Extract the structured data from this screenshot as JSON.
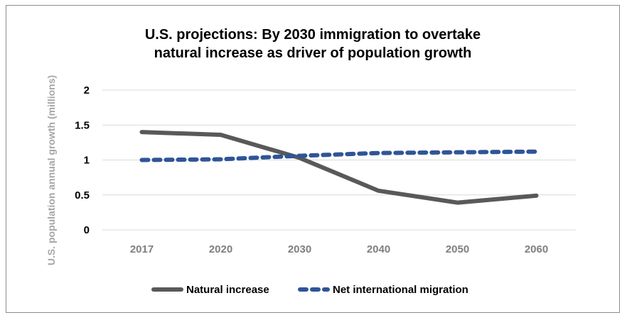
{
  "chart_data": {
    "type": "line",
    "title_lines": [
      "U.S. projections: By 2030 immigration to overtake",
      "natural increase as driver of population growth"
    ],
    "xlabel": "",
    "ylabel": "U.S. population annual growth (millions)",
    "categories": [
      "2017",
      "2020",
      "2030",
      "2040",
      "2050",
      "2060"
    ],
    "ylim": [
      0,
      2
    ],
    "yticks": [
      0,
      0.5,
      1,
      1.5,
      2
    ],
    "ytick_labels": [
      "0",
      "0.5",
      "1",
      "1.5",
      "2"
    ],
    "grid": true,
    "legend_position": "bottom",
    "series": [
      {
        "name": "Natural increase",
        "values": [
          1.4,
          1.36,
          1.03,
          0.56,
          0.39,
          0.49
        ],
        "color": "#595959",
        "style": "solid"
      },
      {
        "name": "Net international migration",
        "values": [
          1.0,
          1.01,
          1.06,
          1.1,
          1.11,
          1.12
        ],
        "color": "#2f5597",
        "style": "dashed"
      }
    ]
  }
}
